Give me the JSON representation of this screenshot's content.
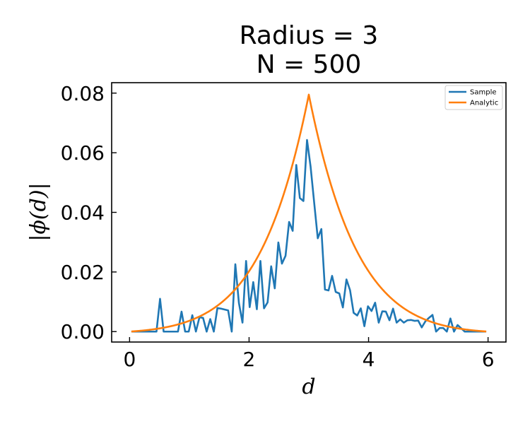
{
  "chart_data": {
    "type": "line",
    "title_line1": "Radius = 3",
    "title_line2": "N = 500",
    "xlabel": "d",
    "ylabel": "|ϕ(d)|",
    "xlim": [
      -0.3,
      6.3
    ],
    "ylim": [
      -0.0035,
      0.0835
    ],
    "xticks": [
      0,
      2,
      4,
      6
    ],
    "xtick_labels": [
      "0",
      "2",
      "4",
      "6"
    ],
    "yticks": [
      0.0,
      0.02,
      0.04,
      0.06,
      0.08
    ],
    "ytick_labels": [
      "0.00",
      "0.02",
      "0.04",
      "0.06",
      "0.08"
    ],
    "legend_position": "top-right",
    "grid": false,
    "series": [
      {
        "name": "Sample",
        "color": "#1f77b4",
        "x": [
          0.03,
          0.09,
          0.15,
          0.21,
          0.27,
          0.33,
          0.39,
          0.45,
          0.51,
          0.57,
          0.63,
          0.69,
          0.75,
          0.81,
          0.87,
          0.93,
          0.99,
          1.05,
          1.11,
          1.17,
          1.23,
          1.29,
          1.35,
          1.41,
          1.47,
          1.53,
          1.59,
          1.65,
          1.71,
          1.77,
          1.83,
          1.89,
          1.95,
          2.01,
          2.07,
          2.13,
          2.19,
          2.25,
          2.31,
          2.37,
          2.43,
          2.49,
          2.55,
          2.61,
          2.67,
          2.73,
          2.79,
          2.85,
          2.91,
          2.97,
          3.03,
          3.09,
          3.15,
          3.21,
          3.27,
          3.33,
          3.39,
          3.45,
          3.51,
          3.57,
          3.63,
          3.69,
          3.75,
          3.81,
          3.87,
          3.93,
          3.99,
          4.05,
          4.11,
          4.17,
          4.23,
          4.29,
          4.35,
          4.41,
          4.47,
          4.53,
          4.59,
          4.65,
          4.71,
          4.77,
          4.83,
          4.89,
          4.95,
          5.01,
          5.07,
          5.13,
          5.19,
          5.25,
          5.31,
          5.37,
          5.43,
          5.49,
          5.55,
          5.61,
          5.67,
          5.73,
          5.79,
          5.85,
          5.91,
          5.97
        ],
        "y": [
          0,
          0,
          0,
          0,
          0,
          0,
          0,
          0,
          0.011,
          0,
          0,
          0,
          0,
          0,
          0.0067,
          0,
          0,
          0.0055,
          0,
          0.0048,
          0.0046,
          0,
          0.0042,
          0,
          0.0079,
          0.0077,
          0.0074,
          0.0071,
          0,
          0.0226,
          0.0096,
          0.003,
          0.0237,
          0.0082,
          0.0166,
          0.0075,
          0.0237,
          0.0078,
          0.0098,
          0.0219,
          0.0145,
          0.0299,
          0.0228,
          0.0254,
          0.0368,
          0.0338,
          0.0559,
          0.0448,
          0.0438,
          0.0643,
          0.0553,
          0.0432,
          0.0313,
          0.0344,
          0.0141,
          0.0138,
          0.0187,
          0.0133,
          0.0128,
          0.0081,
          0.0175,
          0.0139,
          0.0063,
          0.0054,
          0.0078,
          0.0018,
          0.0085,
          0.0069,
          0.0097,
          0.003,
          0.0068,
          0.0067,
          0.0038,
          0.0077,
          0.003,
          0.0041,
          0.003,
          0.0038,
          0.0039,
          0.0036,
          0.0037,
          0.0014,
          0.0034,
          0.0046,
          0.0056,
          0,
          0.0012,
          0.0012,
          0,
          0.0044,
          0,
          0.0022,
          0.0011,
          0,
          0,
          0,
          0,
          0,
          0,
          0
        ]
      },
      {
        "name": "Analytic",
        "color": "#ff7f0e",
        "function": "phi(d) = 0.0795 * exp(-1.25 * |d - 3|) * (1 - (|d - 3| / 3)^2)",
        "x_range": [
          0.03,
          5.97
        ]
      }
    ]
  }
}
